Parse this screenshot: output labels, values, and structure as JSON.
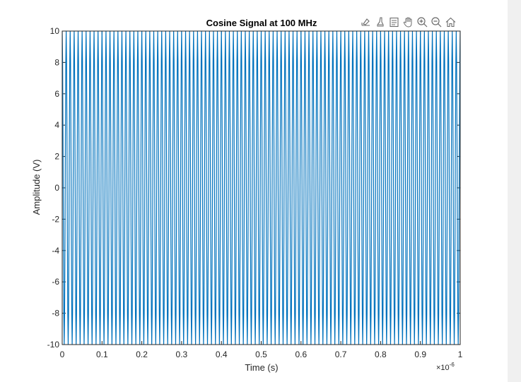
{
  "figure": {
    "toolbar": {
      "buttons": [
        {
          "name": "export-icon"
        },
        {
          "name": "brush-icon"
        },
        {
          "name": "datatip-icon"
        },
        {
          "name": "pan-icon"
        },
        {
          "name": "zoom-in-icon"
        },
        {
          "name": "zoom-out-icon"
        },
        {
          "name": "home-icon"
        }
      ]
    }
  },
  "chart_data": {
    "type": "line",
    "title": "Cosine Signal at 100 MHz",
    "xlabel": "Time (s)",
    "ylabel": "Amplitude (V)",
    "x_exponent_label": "×10",
    "x_exponent_power": "-6",
    "xlim": [
      0,
      1
    ],
    "ylim": [
      -10,
      10
    ],
    "x_ticks": [
      0,
      0.1,
      0.2,
      0.3,
      0.4,
      0.5,
      0.6,
      0.7,
      0.8,
      0.9,
      1
    ],
    "x_tick_labels": [
      "0",
      "0.1",
      "0.2",
      "0.3",
      "0.4",
      "0.5",
      "0.6",
      "0.7",
      "0.8",
      "0.9",
      "1"
    ],
    "y_ticks": [
      10,
      8,
      6,
      4,
      2,
      0,
      -2,
      -4,
      -6,
      -8,
      -10
    ],
    "y_tick_labels": [
      "10",
      "8",
      "6",
      "4",
      "2",
      "0",
      "-2",
      "-4",
      "-6",
      "-8",
      "-10"
    ],
    "grid": false,
    "box": true,
    "series": [
      {
        "amplitude": 10,
        "frequency_hz": 100000000,
        "cycles_over_xlim": 100,
        "sample_interval_x": 0.001,
        "color": "#0072bd"
      }
    ]
  }
}
